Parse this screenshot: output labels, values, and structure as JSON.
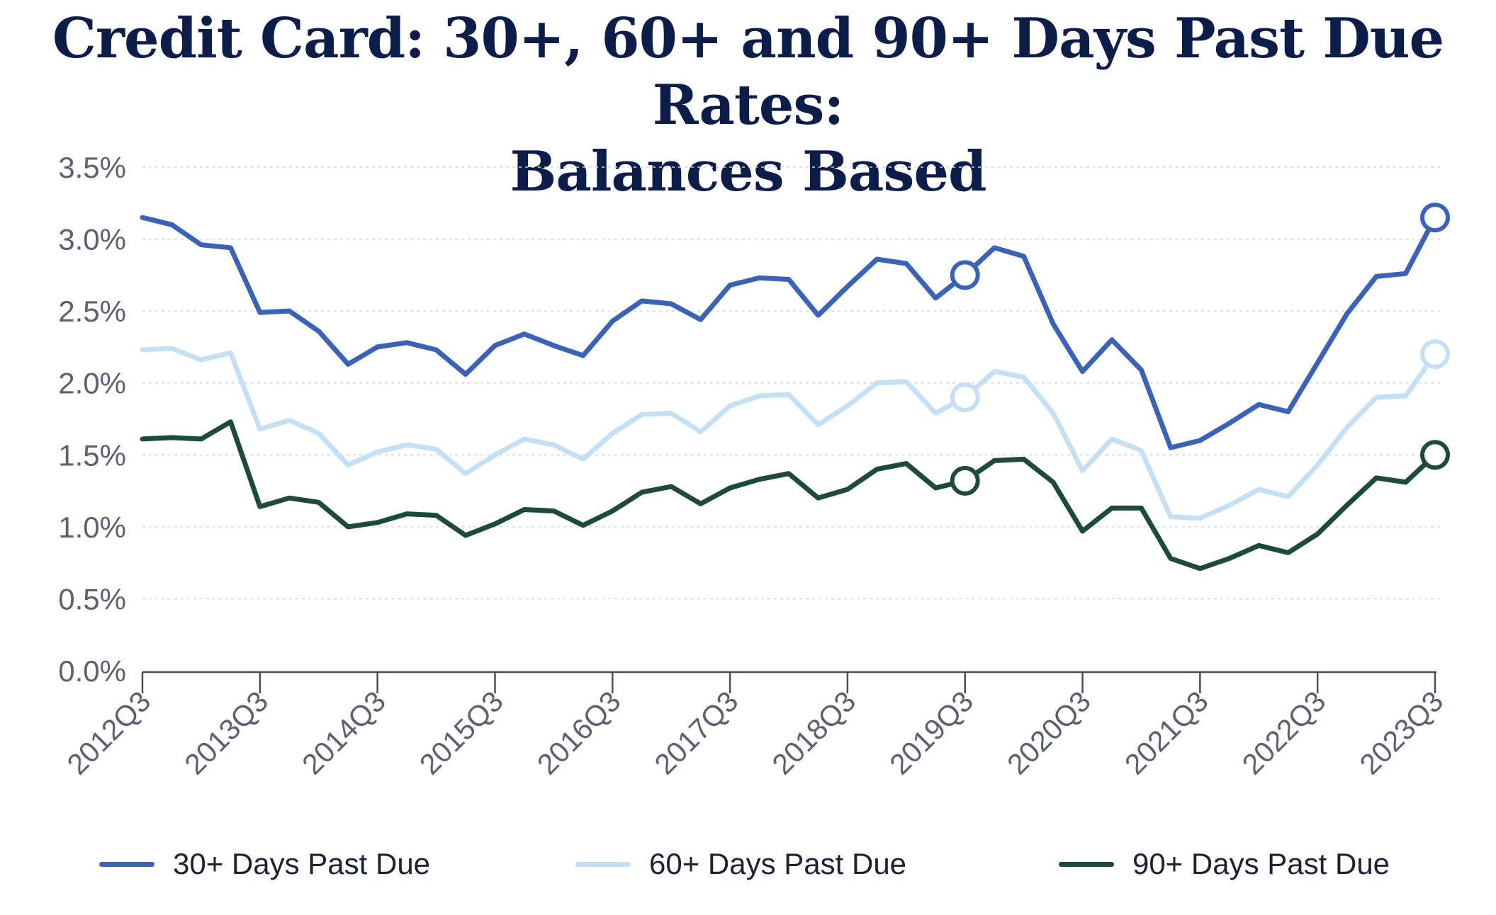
{
  "chart_data": {
    "type": "line",
    "title": "Credit Card: 30+, 60+ and 90+ Days Past Due Rates:",
    "subtitle": "Balances Based",
    "xlabel": "",
    "ylabel": "",
    "ylim": [
      0,
      3.5
    ],
    "yticks": [
      "0.0%",
      "0.5%",
      "1.0%",
      "1.5%",
      "2.0%",
      "2.5%",
      "3.0%",
      "3.5%"
    ],
    "xticks": [
      "2012Q3",
      "2013Q3",
      "2014Q3",
      "2015Q3",
      "2016Q3",
      "2017Q3",
      "2018Q3",
      "2019Q3",
      "2020Q3",
      "2021Q3",
      "2022Q3",
      "2023Q3"
    ],
    "x": [
      "2012Q3",
      "2012Q4",
      "2013Q1",
      "2013Q2",
      "2013Q3",
      "2013Q4",
      "2014Q1",
      "2014Q2",
      "2014Q3",
      "2014Q4",
      "2015Q1",
      "2015Q2",
      "2015Q3",
      "2015Q4",
      "2016Q1",
      "2016Q2",
      "2016Q3",
      "2016Q4",
      "2017Q1",
      "2017Q2",
      "2017Q3",
      "2017Q4",
      "2018Q1",
      "2018Q2",
      "2018Q3",
      "2018Q4",
      "2019Q1",
      "2019Q2",
      "2019Q3",
      "2019Q4",
      "2020Q1",
      "2020Q2",
      "2020Q3",
      "2020Q4",
      "2021Q1",
      "2021Q2",
      "2021Q3",
      "2021Q4",
      "2022Q1",
      "2022Q2",
      "2022Q3",
      "2022Q4",
      "2023Q1",
      "2023Q2",
      "2023Q3"
    ],
    "grid": true,
    "legend_position": "bottom",
    "series": [
      {
        "name": "30+ Days Past Due",
        "color": "#3a63b8",
        "values": [
          3.15,
          3.1,
          2.96,
          2.94,
          2.49,
          2.5,
          2.36,
          2.13,
          2.25,
          2.28,
          2.23,
          2.06,
          2.26,
          2.34,
          2.26,
          2.19,
          2.43,
          2.57,
          2.55,
          2.44,
          2.68,
          2.73,
          2.72,
          2.47,
          2.67,
          2.86,
          2.83,
          2.59,
          2.75,
          2.94,
          2.88,
          2.41,
          2.08,
          2.3,
          2.09,
          1.55,
          1.6,
          1.72,
          1.85,
          1.8,
          2.14,
          2.48,
          2.74,
          2.76,
          3.15
        ],
        "highlight_points": [
          "2019Q3",
          "2023Q3"
        ]
      },
      {
        "name": "60+ Days Past Due",
        "color": "#c5e0f5",
        "values": [
          2.23,
          2.24,
          2.16,
          2.21,
          1.68,
          1.74,
          1.65,
          1.43,
          1.52,
          1.57,
          1.54,
          1.37,
          1.5,
          1.61,
          1.57,
          1.47,
          1.65,
          1.78,
          1.79,
          1.66,
          1.84,
          1.91,
          1.92,
          1.71,
          1.84,
          2.0,
          2.01,
          1.79,
          1.9,
          2.08,
          2.04,
          1.79,
          1.39,
          1.61,
          1.53,
          1.07,
          1.06,
          1.15,
          1.26,
          1.21,
          1.43,
          1.69,
          1.9,
          1.91,
          2.2
        ],
        "highlight_points": [
          "2019Q3",
          "2023Q3"
        ]
      },
      {
        "name": "90+ Days Past Due",
        "color": "#1e4a3b",
        "values": [
          1.61,
          1.62,
          1.61,
          1.73,
          1.14,
          1.2,
          1.17,
          1.0,
          1.03,
          1.09,
          1.08,
          0.94,
          1.02,
          1.12,
          1.11,
          1.01,
          1.11,
          1.24,
          1.28,
          1.16,
          1.27,
          1.33,
          1.37,
          1.2,
          1.26,
          1.4,
          1.44,
          1.27,
          1.32,
          1.46,
          1.47,
          1.31,
          0.97,
          1.13,
          1.13,
          0.78,
          0.71,
          0.78,
          0.87,
          0.82,
          0.95,
          1.15,
          1.34,
          1.31,
          1.5
        ],
        "highlight_points": [
          "2019Q3",
          "2023Q3"
        ]
      }
    ]
  }
}
